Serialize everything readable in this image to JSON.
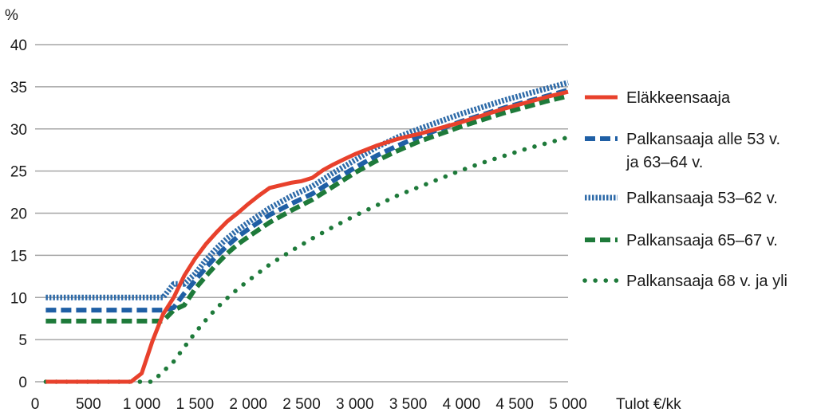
{
  "chart_data": {
    "type": "line",
    "ylabel": "%",
    "xlabel": "Tulot €/kk",
    "xlim": [
      0,
      5000
    ],
    "ylim": [
      0,
      40
    ],
    "x_ticks": [
      0,
      500,
      1000,
      1500,
      2000,
      2500,
      3000,
      3500,
      4000,
      4500,
      5000
    ],
    "x_tick_labels": [
      "0",
      "500",
      "1 000",
      "1 500",
      "2 000",
      "2 500",
      "3 000",
      "3 500",
      "4 000",
      "4 500",
      "5 000"
    ],
    "y_ticks": [
      0,
      5,
      10,
      15,
      20,
      25,
      30,
      35,
      40
    ],
    "y_tick_labels": [
      "0",
      "5",
      "10",
      "15",
      "20",
      "25",
      "30",
      "35",
      "40"
    ],
    "grid": "horizontal",
    "legend_position": "right",
    "series": [
      {
        "name": "Eläkkeensaaja",
        "color": "#e8412c",
        "style": "solid",
        "points": [
          [
            100,
            0
          ],
          [
            900,
            0
          ],
          [
            1000,
            1
          ],
          [
            1100,
            4.8
          ],
          [
            1200,
            8
          ],
          [
            1300,
            10
          ],
          [
            1400,
            12.6
          ],
          [
            1500,
            14.6
          ],
          [
            1600,
            16.3
          ],
          [
            1700,
            17.7
          ],
          [
            1800,
            19
          ],
          [
            1900,
            20
          ],
          [
            2000,
            21.1
          ],
          [
            2100,
            22.1
          ],
          [
            2200,
            23
          ],
          [
            2300,
            23.3
          ],
          [
            2400,
            23.6
          ],
          [
            2500,
            23.8
          ],
          [
            2600,
            24.2
          ],
          [
            2700,
            25.1
          ],
          [
            2800,
            25.8
          ],
          [
            2900,
            26.4
          ],
          [
            3000,
            27
          ],
          [
            3200,
            28
          ],
          [
            3400,
            28.8
          ],
          [
            3600,
            29.4
          ],
          [
            3800,
            30.1
          ],
          [
            4000,
            30.8
          ],
          [
            4200,
            31.6
          ],
          [
            4400,
            32.4
          ],
          [
            4600,
            33.1
          ],
          [
            4800,
            33.8
          ],
          [
            5000,
            34.4
          ]
        ]
      },
      {
        "name": "Palkansaaja alle 53 v. ja 63–64 v.",
        "color": "#1f5fa5",
        "style": "dashed",
        "points": [
          [
            100,
            8.5
          ],
          [
            1200,
            8.5
          ],
          [
            1300,
            8.8
          ],
          [
            1400,
            10.5
          ],
          [
            1500,
            12
          ],
          [
            1600,
            13.5
          ],
          [
            1700,
            14.9
          ],
          [
            1800,
            16.1
          ],
          [
            1900,
            17.2
          ],
          [
            2000,
            18.1
          ],
          [
            2200,
            19.8
          ],
          [
            2400,
            21.1
          ],
          [
            2600,
            22.3
          ],
          [
            2800,
            23.9
          ],
          [
            3000,
            25.4
          ],
          [
            3200,
            26.8
          ],
          [
            3400,
            28
          ],
          [
            3600,
            29.1
          ],
          [
            3800,
            30
          ],
          [
            4000,
            30.9
          ],
          [
            4200,
            31.7
          ],
          [
            4400,
            32.5
          ],
          [
            4600,
            33.2
          ],
          [
            4800,
            33.9
          ],
          [
            5000,
            34.6
          ]
        ]
      },
      {
        "name": "Palkansaaja 53–62 v.",
        "color": "#2d6aa8",
        "style": "dotted",
        "points": [
          [
            100,
            10
          ],
          [
            1200,
            10
          ],
          [
            1300,
            11.6
          ],
          [
            1400,
            11.6
          ],
          [
            1500,
            12.8
          ],
          [
            1600,
            14.4
          ],
          [
            1700,
            15.8
          ],
          [
            1800,
            17
          ],
          [
            1900,
            18
          ],
          [
            2000,
            18.9
          ],
          [
            2200,
            20.6
          ],
          [
            2400,
            22
          ],
          [
            2600,
            23.2
          ],
          [
            2800,
            24.8
          ],
          [
            3000,
            26.3
          ],
          [
            3200,
            27.8
          ],
          [
            3400,
            29
          ],
          [
            3600,
            30
          ],
          [
            3800,
            30.9
          ],
          [
            4000,
            31.8
          ],
          [
            4200,
            32.6
          ],
          [
            4400,
            33.4
          ],
          [
            4600,
            34.1
          ],
          [
            4800,
            34.8
          ],
          [
            5000,
            35.5
          ]
        ]
      },
      {
        "name": "Palkansaaja 65–67 v.",
        "color": "#1e7a3a",
        "style": "dashed",
        "points": [
          [
            100,
            7.2
          ],
          [
            1200,
            7.2
          ],
          [
            1300,
            8.5
          ],
          [
            1400,
            9.1
          ],
          [
            1500,
            11
          ],
          [
            1600,
            12.5
          ],
          [
            1700,
            13.9
          ],
          [
            1800,
            15.2
          ],
          [
            1900,
            16.3
          ],
          [
            2000,
            17.2
          ],
          [
            2200,
            18.9
          ],
          [
            2400,
            20.3
          ],
          [
            2600,
            21.6
          ],
          [
            2800,
            23.2
          ],
          [
            3000,
            24.8
          ],
          [
            3200,
            26.2
          ],
          [
            3400,
            27.4
          ],
          [
            3600,
            28.5
          ],
          [
            3800,
            29.4
          ],
          [
            4000,
            30.3
          ],
          [
            4200,
            31.1
          ],
          [
            4400,
            31.9
          ],
          [
            4600,
            32.6
          ],
          [
            4800,
            33.3
          ],
          [
            5000,
            33.9
          ]
        ]
      },
      {
        "name": "Palkansaaja 68 v. ja yli",
        "color": "#1e7a3a",
        "style": "sparse-dotted",
        "points": [
          [
            100,
            0
          ],
          [
            1100,
            0
          ],
          [
            1200,
            1.2
          ],
          [
            1300,
            2.4
          ],
          [
            1400,
            4.1
          ],
          [
            1500,
            5.8
          ],
          [
            1600,
            7.3
          ],
          [
            1700,
            8.7
          ],
          [
            1800,
            9.9
          ],
          [
            1900,
            11
          ],
          [
            2000,
            12
          ],
          [
            2200,
            13.9
          ],
          [
            2400,
            15.5
          ],
          [
            2600,
            17
          ],
          [
            2800,
            18.4
          ],
          [
            3000,
            19.7
          ],
          [
            3200,
            20.9
          ],
          [
            3400,
            22.1
          ],
          [
            3600,
            23.1
          ],
          [
            3800,
            24.1
          ],
          [
            4000,
            25.1
          ],
          [
            4200,
            26
          ],
          [
            4400,
            26.8
          ],
          [
            4600,
            27.6
          ],
          [
            4800,
            28.3
          ],
          [
            5000,
            29
          ]
        ]
      }
    ]
  }
}
